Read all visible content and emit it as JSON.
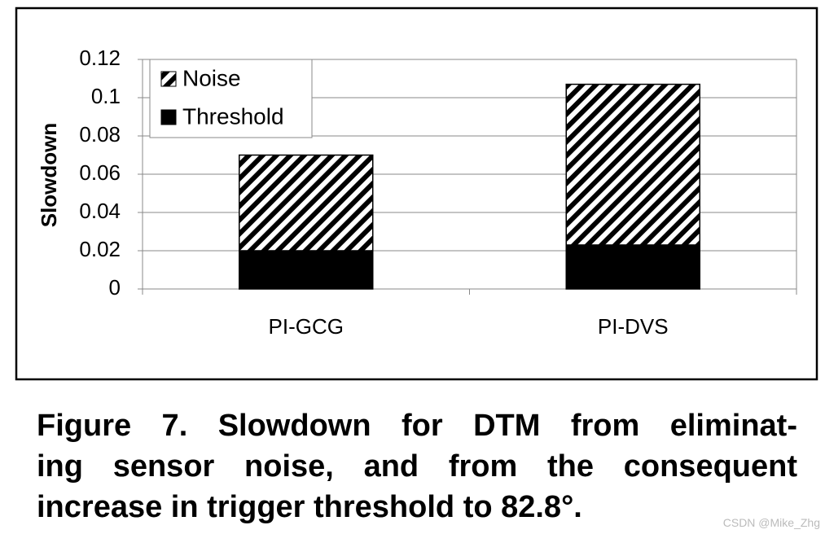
{
  "chart_data": {
    "type": "stacked-bar",
    "ylabel": "Slowdown",
    "categories": [
      "PI-GCG",
      "PI-DVS"
    ],
    "series": [
      {
        "name": "Threshold",
        "color": "#000000",
        "values": [
          0.02,
          0.023
        ]
      },
      {
        "name": "Noise",
        "color": "#000000",
        "pattern": "hatch",
        "values": [
          0.05,
          0.084
        ]
      }
    ],
    "ylim": [
      0,
      0.12
    ],
    "yticks": [
      0,
      0.02,
      0.04,
      0.06,
      0.08,
      0.1,
      0.12
    ],
    "grid": true,
    "legend": "top-left"
  },
  "caption": [
    "Figure 7. Slowdown for DTM from eliminat-",
    "ing sensor noise, and from the consequent",
    "increase in trigger threshold to 82.8°."
  ],
  "watermark": "CSDN @Mike_Zhg"
}
